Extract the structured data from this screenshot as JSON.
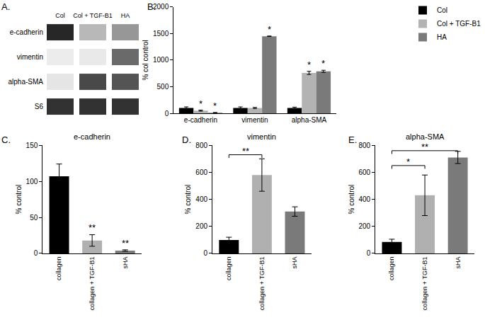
{
  "chart_data": [
    {
      "type": "blot",
      "panel": "A.",
      "lanes": [
        "Col",
        "Col + TGF-B1",
        "HA"
      ],
      "rows": [
        "e-cadherin",
        "vimentin",
        "alpha-SMA",
        "S6"
      ],
      "intensity": [
        [
          0.9,
          0.25,
          0.4
        ],
        [
          0.02,
          0.03,
          0.6
        ],
        [
          0.05,
          0.75,
          0.7
        ],
        [
          0.85,
          0.85,
          0.85
        ]
      ],
      "intensity_range": [
        0,
        1
      ]
    },
    {
      "type": "bar",
      "panel": "B.",
      "categories": [
        "e-cadherin",
        "vimentin",
        "alpha-SMA"
      ],
      "series": [
        {
          "name": "Col",
          "color": "#000000",
          "values": [
            100,
            100,
            100
          ],
          "errors": [
            20,
            20,
            15
          ]
        },
        {
          "name": "Col + TGF-B1",
          "color": "#b3b3b3",
          "values": [
            50,
            100,
            760
          ],
          "errors": [
            10,
            10,
            30
          ]
        },
        {
          "name": "HA",
          "color": "#7a7a7a",
          "values": [
            10,
            1450,
            790
          ],
          "errors": [
            5,
            5,
            20
          ]
        }
      ],
      "ylim": [
        0,
        2000
      ],
      "yticks": [
        0,
        500,
        1000,
        1500,
        2000
      ],
      "y_label": "% col control",
      "legend": "top right",
      "grid": false,
      "annotations": [
        {
          "text": "*",
          "category": "e-cadherin",
          "series": "Col + TGF-B1"
        },
        {
          "text": "*",
          "category": "e-cadherin",
          "series": "HA"
        },
        {
          "text": "*",
          "category": "vimentin",
          "series": "HA"
        },
        {
          "text": "*",
          "category": "alpha-SMA",
          "series": "Col + TGF-B1"
        },
        {
          "text": "*",
          "category": "alpha-SMA",
          "series": "HA"
        }
      ]
    },
    {
      "type": "bar",
      "panel": "C.",
      "title": "e-cadherin",
      "categories": [
        "collagen",
        "collagen + TGF-B1",
        "sHA"
      ],
      "values": [
        107,
        18,
        4
      ],
      "errors": [
        17,
        8,
        1
      ],
      "colors": [
        "#000000",
        "#b0b0b0",
        "#7a7a7a"
      ],
      "ylim": [
        0,
        150
      ],
      "yticks": [
        0,
        50,
        100,
        150
      ],
      "y_label": "% control",
      "grid": false,
      "annotations": [
        {
          "text": "**",
          "category": "collagen + TGF-B1"
        },
        {
          "text": "**",
          "category": "sHA"
        }
      ]
    },
    {
      "type": "bar",
      "panel": "D.",
      "title": "vimentin",
      "categories": [
        "collagen",
        "collagen + TGF-B1",
        "sHA"
      ],
      "values": [
        100,
        580,
        310
      ],
      "errors": [
        20,
        120,
        35
      ],
      "colors": [
        "#000000",
        "#b0b0b0",
        "#7a7a7a"
      ],
      "ylim": [
        0,
        800
      ],
      "yticks": [
        0,
        200,
        400,
        600,
        800
      ],
      "y_label": "% control",
      "grid": false,
      "comparisons": [
        {
          "from": "collagen",
          "to": "collagen + TGF-B1",
          "label": "**",
          "y": 730
        }
      ]
    },
    {
      "type": "bar",
      "panel": "E.",
      "title": "alpha-SMA",
      "categories": [
        "collagen",
        "collagen + TGF-B1",
        "sHA"
      ],
      "values": [
        85,
        430,
        710
      ],
      "errors": [
        20,
        150,
        45
      ],
      "colors": [
        "#000000",
        "#b0b0b0",
        "#7a7a7a"
      ],
      "ylim": [
        0,
        800
      ],
      "yticks": [
        0,
        200,
        400,
        600,
        800
      ],
      "y_label": "% control",
      "grid": false,
      "comparisons": [
        {
          "from": "collagen",
          "to": "collagen + TGF-B1",
          "label": "*",
          "y": 650
        },
        {
          "from": "collagen",
          "to": "sHA",
          "label": "**",
          "y": 760
        }
      ]
    }
  ]
}
